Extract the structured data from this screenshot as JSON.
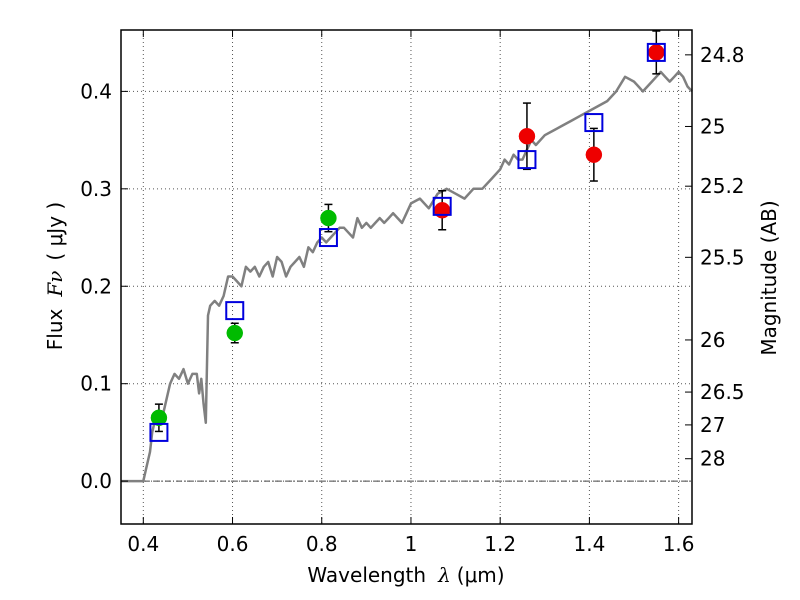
{
  "chart_data": {
    "type": "scatter",
    "xlabel": "Wavelength  λ (μm)",
    "xlabel_text": "Wavelength",
    "xlabel_symbol": "λ",
    "xlabel_unit": "(μm)",
    "ylabel": "Flux  Fν ( μJy )",
    "ylabel_text": "Flux",
    "ylabel_symbol": "Fν",
    "ylabel_unit": "( μJy )",
    "y2label": "Magnitude (AB)",
    "xlim": [
      0.35,
      1.63
    ],
    "ylim": [
      -0.044,
      0.463
    ],
    "grid": true,
    "x_ticks": [
      0.4,
      0.6,
      0.8,
      1.0,
      1.2,
      1.4,
      1.6
    ],
    "x_tick_labels": [
      "0.4",
      "0.6",
      "0.8",
      "1",
      "1.2",
      "1.4",
      "1.6"
    ],
    "y_ticks": [
      0.0,
      0.1,
      0.2,
      0.3,
      0.4
    ],
    "y_tick_labels": [
      "0.0",
      "0.1",
      "0.2",
      "0.3",
      "0.4"
    ],
    "mag_ticks": [
      {
        "label": "24.8",
        "flux": 0.4375
      },
      {
        "label": "25",
        "flux": 0.364
      },
      {
        "label": "25.2",
        "flux": 0.3027
      },
      {
        "label": "25.5",
        "flux": 0.2297
      },
      {
        "label": "26",
        "flux": 0.1449
      },
      {
        "label": "26.5",
        "flux": 0.0914
      },
      {
        "label": "27",
        "flux": 0.0577
      },
      {
        "label": "28",
        "flux": 0.023
      }
    ],
    "colors": {
      "model": "#808080",
      "green": "#00bb00",
      "red": "#ee0000",
      "box": "#0000dd",
      "errbar": "#000000",
      "grid": "#555555"
    },
    "series": [
      {
        "name": "model-spectrum",
        "kind": "line",
        "x": [
          0.35,
          0.4,
          0.405,
          0.415,
          0.42,
          0.43,
          0.44,
          0.45,
          0.46,
          0.47,
          0.48,
          0.49,
          0.5,
          0.51,
          0.52,
          0.525,
          0.53,
          0.535,
          0.54,
          0.545,
          0.55,
          0.56,
          0.57,
          0.58,
          0.59,
          0.6,
          0.61,
          0.62,
          0.63,
          0.64,
          0.65,
          0.66,
          0.67,
          0.68,
          0.69,
          0.7,
          0.71,
          0.72,
          0.73,
          0.74,
          0.75,
          0.76,
          0.77,
          0.78,
          0.79,
          0.8,
          0.81,
          0.82,
          0.83,
          0.84,
          0.85,
          0.86,
          0.87,
          0.88,
          0.89,
          0.9,
          0.91,
          0.92,
          0.93,
          0.94,
          0.95,
          0.96,
          0.97,
          0.98,
          0.99,
          1.0,
          1.02,
          1.04,
          1.06,
          1.08,
          1.1,
          1.12,
          1.14,
          1.16,
          1.18,
          1.2,
          1.21,
          1.22,
          1.23,
          1.24,
          1.25,
          1.26,
          1.27,
          1.28,
          1.3,
          1.32,
          1.34,
          1.36,
          1.38,
          1.4,
          1.42,
          1.44,
          1.46,
          1.48,
          1.5,
          1.51,
          1.52,
          1.53,
          1.54,
          1.55,
          1.56,
          1.57,
          1.58,
          1.59,
          1.6,
          1.61,
          1.62,
          1.63
        ],
        "y": [
          0.0,
          0.0,
          0.01,
          0.03,
          0.05,
          0.07,
          0.06,
          0.08,
          0.1,
          0.11,
          0.105,
          0.115,
          0.1,
          0.11,
          0.11,
          0.09,
          0.105,
          0.08,
          0.06,
          0.17,
          0.18,
          0.185,
          0.18,
          0.19,
          0.21,
          0.21,
          0.205,
          0.2,
          0.22,
          0.215,
          0.22,
          0.21,
          0.22,
          0.225,
          0.21,
          0.23,
          0.225,
          0.21,
          0.22,
          0.225,
          0.23,
          0.22,
          0.24,
          0.235,
          0.245,
          0.25,
          0.245,
          0.25,
          0.255,
          0.26,
          0.26,
          0.255,
          0.25,
          0.27,
          0.26,
          0.265,
          0.26,
          0.265,
          0.27,
          0.265,
          0.27,
          0.275,
          0.27,
          0.265,
          0.275,
          0.285,
          0.29,
          0.28,
          0.295,
          0.3,
          0.295,
          0.29,
          0.3,
          0.3,
          0.31,
          0.32,
          0.33,
          0.325,
          0.335,
          0.33,
          0.33,
          0.34,
          0.35,
          0.345,
          0.355,
          0.36,
          0.365,
          0.37,
          0.375,
          0.38,
          0.385,
          0.39,
          0.4,
          0.415,
          0.41,
          0.405,
          0.4,
          0.405,
          0.41,
          0.415,
          0.42,
          0.415,
          0.41,
          0.415,
          0.42,
          0.415,
          0.405,
          0.4
        ]
      },
      {
        "name": "green-points",
        "kind": "points",
        "x": [
          0.435,
          0.605,
          0.815
        ],
        "y": [
          0.065,
          0.152,
          0.27
        ],
        "yerr": [
          0.014,
          0.01,
          0.014
        ]
      },
      {
        "name": "red-points",
        "kind": "points",
        "x": [
          1.07,
          1.26,
          1.41,
          1.55
        ],
        "y": [
          0.278,
          0.354,
          0.335,
          0.44
        ],
        "yerr": [
          0.02,
          0.034,
          0.027,
          0.022
        ]
      },
      {
        "name": "model-boxes",
        "kind": "boxes",
        "x": [
          0.435,
          0.605,
          0.815,
          1.07,
          1.26,
          1.41,
          1.55
        ],
        "y": [
          0.05,
          0.175,
          0.25,
          0.282,
          0.33,
          0.368,
          0.44
        ]
      }
    ]
  }
}
